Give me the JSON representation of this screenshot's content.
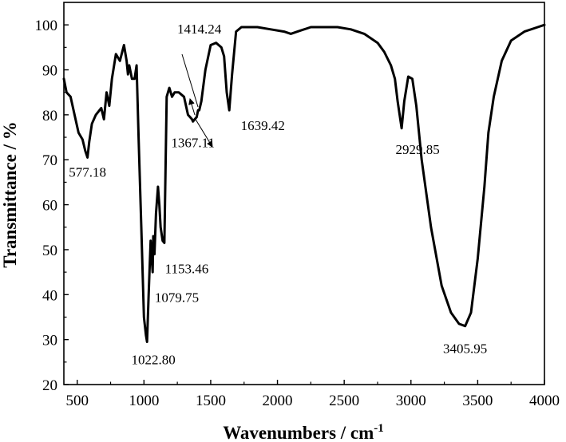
{
  "chart_data": {
    "type": "line",
    "title": "",
    "xlabel": "Wavenumbers / cm",
    "xlabel_superscript": "-1",
    "ylabel": "Transmittance / %",
    "xlim": [
      400,
      4000
    ],
    "ylim": [
      20,
      105
    ],
    "xticks": [
      500,
      1000,
      1500,
      2000,
      2500,
      3000,
      3500,
      4000
    ],
    "yticks": [
      20,
      30,
      40,
      50,
      60,
      70,
      80,
      90,
      100
    ],
    "grid": false,
    "legend": "none",
    "line_color": "#000000",
    "series": [
      {
        "x": [
          400,
          420,
          450,
          480,
          510,
          540,
          560,
          577,
          590,
          610,
          640,
          680,
          700,
          720,
          740,
          760,
          790,
          820,
          850,
          870,
          880,
          890,
          910,
          930,
          945,
          960,
          980,
          1000,
          1015,
          1023,
          1035,
          1050,
          1065,
          1070,
          1079,
          1090,
          1105,
          1115,
          1125,
          1140,
          1153,
          1170,
          1190,
          1210,
          1230,
          1260,
          1300,
          1330,
          1360,
          1367,
          1380,
          1395,
          1405,
          1414,
          1430,
          1460,
          1500,
          1540,
          1580,
          1600,
          1620,
          1639,
          1660,
          1690,
          1730,
          1780,
          1850,
          1950,
          2050,
          2100,
          2150,
          2250,
          2350,
          2450,
          2550,
          2650,
          2750,
          2800,
          2850,
          2880,
          2900,
          2915,
          2930,
          2950,
          2980,
          3010,
          3040,
          3080,
          3150,
          3230,
          3300,
          3360,
          3406,
          3450,
          3500,
          3550,
          3580,
          3620,
          3680,
          3750,
          3850,
          3950,
          4000
        ],
        "y": [
          88,
          85,
          84,
          80,
          76,
          74.5,
          72,
          70.5,
          74,
          78,
          80,
          81.5,
          79,
          85,
          82,
          88,
          93.5,
          92,
          95.5,
          92,
          89,
          91,
          88,
          88,
          91,
          75,
          55,
          35,
          31,
          29.5,
          40,
          52,
          45,
          53,
          49,
          58,
          64,
          60,
          55,
          52,
          51.5,
          84,
          86,
          84,
          85,
          85,
          84,
          80,
          79,
          78.5,
          79,
          79.5,
          81,
          81,
          83,
          90,
          95.5,
          96,
          95,
          93,
          85,
          81,
          89,
          98.5,
          99.5,
          99.5,
          99.5,
          99,
          98.5,
          98,
          98.5,
          99.5,
          99.5,
          99.5,
          99,
          98,
          96,
          94,
          91,
          88,
          83,
          80,
          77,
          83,
          88.5,
          88,
          82,
          70,
          55,
          42,
          36,
          33.5,
          33,
          36,
          48,
          64,
          76,
          84,
          92,
          96.5,
          98.5,
          99.5,
          100
        ]
      }
    ],
    "annotations": [
      {
        "text": "577.18",
        "x": 577,
        "y": 70.5
      },
      {
        "text": "1022.80",
        "x": 1023,
        "y": 29.5
      },
      {
        "text": "1079.75",
        "x": 1079,
        "y": 49
      },
      {
        "text": "1153.46",
        "x": 1153,
        "y": 51.5
      },
      {
        "text": "1367.11",
        "x": 1367,
        "y": 78.5
      },
      {
        "text": "1414.24",
        "x": 1414,
        "y": 81
      },
      {
        "text": "1639.42",
        "x": 1639,
        "y": 81
      },
      {
        "text": "2929.85",
        "x": 2930,
        "y": 77
      },
      {
        "text": "3405.95",
        "x": 3406,
        "y": 33
      }
    ]
  }
}
